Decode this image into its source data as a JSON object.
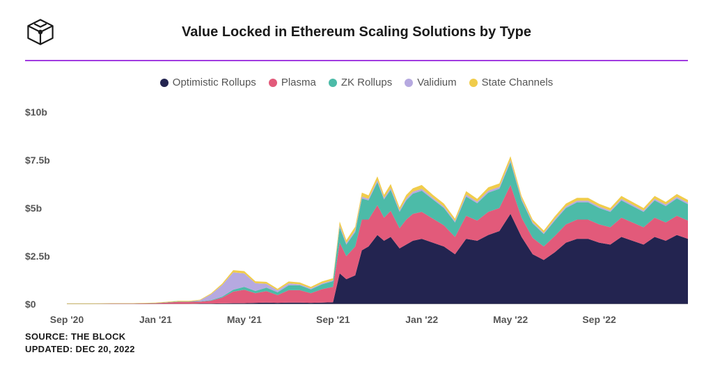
{
  "title": "Value Locked in Ethereum Scaling Solutions by Type",
  "source_line": "SOURCE: THE BLOCK",
  "updated_line": "UPDATED: DEC 20, 2022",
  "colors": {
    "optimistic": "#232450",
    "plasma": "#e25a7a",
    "zk": "#4cbba8",
    "validium": "#b6a9e0",
    "state": "#f0cc4b",
    "accent_line": "#a13be0",
    "text": "#1a1a1a",
    "axis_text": "#555555",
    "bg": "#ffffff"
  },
  "legend": [
    {
      "key": "optimistic",
      "label": "Optimistic Rollups"
    },
    {
      "key": "plasma",
      "label": "Plasma"
    },
    {
      "key": "zk",
      "label": "ZK Rollups"
    },
    {
      "key": "validium",
      "label": "Validium"
    },
    {
      "key": "state",
      "label": "State Channels"
    }
  ],
  "y_axis": {
    "min": 0,
    "max": 10.5,
    "ticks": [
      {
        "v": 0,
        "label": "$0"
      },
      {
        "v": 2.5,
        "label": "$2.5b"
      },
      {
        "v": 5,
        "label": "$5b"
      },
      {
        "v": 7.5,
        "label": "$7.5b"
      },
      {
        "v": 10,
        "label": "$10b"
      }
    ]
  },
  "x_axis": {
    "min": 0,
    "max": 28,
    "ticks": [
      {
        "v": 0,
        "label": "Sep '20"
      },
      {
        "v": 4,
        "label": "Jan '21"
      },
      {
        "v": 8,
        "label": "May '21"
      },
      {
        "v": 12,
        "label": "Sep '21"
      },
      {
        "v": 16,
        "label": "Jan '22"
      },
      {
        "v": 20,
        "label": "May '22"
      },
      {
        "v": 24,
        "label": "Sep '22"
      }
    ]
  },
  "stack_order": [
    "optimistic",
    "plasma",
    "zk",
    "validium",
    "state"
  ],
  "series": {
    "x": [
      0,
      1,
      2,
      3,
      4,
      5,
      5.5,
      6,
      6.5,
      7,
      7.5,
      8,
      8.5,
      9,
      9.5,
      10,
      10.5,
      11,
      11.5,
      12,
      12.3,
      12.6,
      13,
      13.3,
      13.6,
      14,
      14.3,
      14.6,
      15,
      15.3,
      15.6,
      16,
      16.5,
      17,
      17.5,
      18,
      18.5,
      19,
      19.5,
      20,
      20.5,
      21,
      21.5,
      22,
      22.5,
      23,
      23.5,
      24,
      24.5,
      25,
      25.5,
      26,
      26.5,
      27,
      27.5,
      28
    ],
    "optimistic": [
      0,
      0,
      0,
      0,
      0,
      0.02,
      0.02,
      0.03,
      0.03,
      0.04,
      0.05,
      0.05,
      0.07,
      0.08,
      0.07,
      0.08,
      0.08,
      0.07,
      0.08,
      0.1,
      1.6,
      1.3,
      1.5,
      2.8,
      3.0,
      3.6,
      3.3,
      3.5,
      2.9,
      3.1,
      3.3,
      3.4,
      3.2,
      3.0,
      2.6,
      3.4,
      3.3,
      3.6,
      3.8,
      4.7,
      3.5,
      2.6,
      2.3,
      2.7,
      3.2,
      3.4,
      3.4,
      3.2,
      3.1,
      3.5,
      3.3,
      3.1,
      3.5,
      3.3,
      3.6,
      3.4
    ],
    "plasma": [
      0.02,
      0.02,
      0.03,
      0.03,
      0.05,
      0.1,
      0.1,
      0.1,
      0.15,
      0.3,
      0.6,
      0.7,
      0.5,
      0.6,
      0.4,
      0.65,
      0.65,
      0.5,
      0.7,
      0.8,
      1.6,
      1.2,
      1.5,
      1.6,
      1.4,
      1.55,
      1.2,
      1.35,
      1.05,
      1.3,
      1.4,
      1.4,
      1.25,
      1.1,
      0.9,
      1.2,
      1.05,
      1.2,
      1.2,
      1.5,
      1.0,
      0.85,
      0.7,
      0.85,
      0.95,
      1.0,
      1.0,
      0.95,
      0.9,
      1.0,
      0.95,
      0.9,
      1.0,
      0.95,
      1.0,
      0.95
    ],
    "zk": [
      0,
      0,
      0,
      0,
      0.01,
      0.02,
      0.02,
      0.02,
      0.03,
      0.05,
      0.1,
      0.15,
      0.12,
      0.18,
      0.15,
      0.25,
      0.25,
      0.2,
      0.25,
      0.3,
      0.8,
      0.6,
      0.75,
      1.1,
      1.0,
      1.2,
      0.95,
      1.1,
      0.85,
      1.0,
      1.05,
      1.1,
      1.0,
      0.9,
      0.75,
      1.0,
      0.9,
      1.0,
      1.0,
      1.2,
      0.9,
      0.75,
      0.65,
      0.8,
      0.85,
      0.9,
      0.9,
      0.85,
      0.8,
      0.9,
      0.85,
      0.8,
      0.9,
      0.85,
      0.9,
      0.85
    ],
    "validium": [
      0,
      0,
      0,
      0,
      0,
      0,
      0,
      0.05,
      0.3,
      0.6,
      0.9,
      0.7,
      0.4,
      0.2,
      0.1,
      0.1,
      0.05,
      0.05,
      0.05,
      0.05,
      0.1,
      0.08,
      0.1,
      0.1,
      0.08,
      0.1,
      0.08,
      0.1,
      0.08,
      0.1,
      0.1,
      0.1,
      0.08,
      0.08,
      0.07,
      0.1,
      0.08,
      0.1,
      0.1,
      0.1,
      0.08,
      0.07,
      0.06,
      0.08,
      0.08,
      0.08,
      0.08,
      0.08,
      0.07,
      0.08,
      0.08,
      0.07,
      0.08,
      0.08,
      0.08,
      0.08
    ],
    "state": [
      0.02,
      0.02,
      0.02,
      0.02,
      0.02,
      0.03,
      0.03,
      0.03,
      0.05,
      0.08,
      0.12,
      0.12,
      0.1,
      0.1,
      0.08,
      0.1,
      0.1,
      0.08,
      0.1,
      0.1,
      0.2,
      0.15,
      0.18,
      0.2,
      0.18,
      0.2,
      0.16,
      0.2,
      0.15,
      0.18,
      0.18,
      0.2,
      0.16,
      0.15,
      0.13,
      0.18,
      0.15,
      0.18,
      0.18,
      0.2,
      0.15,
      0.13,
      0.12,
      0.14,
      0.15,
      0.15,
      0.15,
      0.14,
      0.13,
      0.15,
      0.14,
      0.13,
      0.15,
      0.14,
      0.15,
      0.14
    ]
  },
  "chart_style": {
    "type": "stacked-area",
    "title_fontsize": 20,
    "legend_fontsize": 15,
    "axis_fontsize": 14,
    "footer_fontsize": 13
  }
}
